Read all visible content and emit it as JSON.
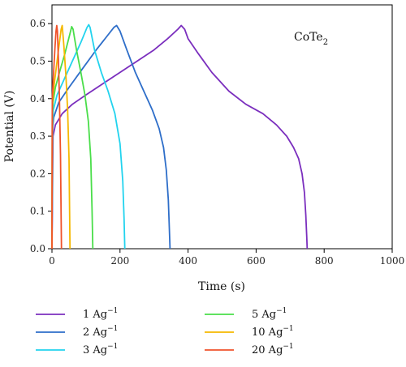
{
  "chart_data": {
    "type": "line",
    "title": "",
    "xlabel": "Time (s)",
    "ylabel": "Potential (V)",
    "xlim": [
      0,
      1000
    ],
    "ylim": [
      0,
      0.65
    ],
    "x_ticks": [
      0,
      200,
      400,
      600,
      800,
      1000
    ],
    "y_ticks": [
      0.0,
      0.1,
      0.2,
      0.3,
      0.4,
      0.5,
      0.6
    ],
    "grid": false,
    "annotation": {
      "base": "CoTe",
      "subscript": "2"
    },
    "legend_position": "below",
    "series": [
      {
        "name": "1 Ag",
        "superscript": "−1",
        "color": "#7b2fbe",
        "x": [
          0,
          3,
          10,
          30,
          60,
          100,
          150,
          200,
          250,
          300,
          340,
          370,
          380,
          390,
          400,
          430,
          470,
          520,
          570,
          620,
          660,
          690,
          710,
          725,
          735,
          742,
          746,
          749,
          750
        ],
        "y": [
          0.0,
          0.3,
          0.33,
          0.36,
          0.385,
          0.41,
          0.44,
          0.47,
          0.5,
          0.53,
          0.56,
          0.585,
          0.595,
          0.585,
          0.56,
          0.52,
          0.47,
          0.42,
          0.385,
          0.36,
          0.33,
          0.3,
          0.27,
          0.24,
          0.2,
          0.15,
          0.09,
          0.03,
          0.0
        ]
      },
      {
        "name": "2 Ag",
        "superscript": "−1",
        "color": "#2e6ec9",
        "x": [
          0,
          2,
          5,
          20,
          50,
          90,
          130,
          165,
          182,
          190,
          200,
          220,
          245,
          270,
          295,
          315,
          328,
          336,
          342,
          345,
          347
        ],
        "y": [
          0.0,
          0.32,
          0.35,
          0.39,
          0.43,
          0.48,
          0.53,
          0.57,
          0.59,
          0.595,
          0.58,
          0.53,
          0.47,
          0.42,
          0.37,
          0.32,
          0.27,
          0.21,
          0.13,
          0.05,
          0.0
        ]
      },
      {
        "name": "3 Ag",
        "superscript": "−1",
        "color": "#22d3ee",
        "x": [
          0,
          2,
          4,
          15,
          35,
          60,
          85,
          103,
          108,
          112,
          125,
          145,
          165,
          185,
          200,
          208,
          212,
          214
        ],
        "y": [
          0.0,
          0.34,
          0.37,
          0.41,
          0.45,
          0.5,
          0.55,
          0.59,
          0.597,
          0.59,
          0.53,
          0.47,
          0.42,
          0.36,
          0.28,
          0.18,
          0.08,
          0.0
        ]
      },
      {
        "name": "5 Ag",
        "superscript": "−1",
        "color": "#4ade4a",
        "x": [
          0,
          1,
          3,
          10,
          22,
          38,
          52,
          58,
          62,
          72,
          85,
          97,
          107,
          114,
          118,
          120
        ],
        "y": [
          0.0,
          0.36,
          0.39,
          0.43,
          0.47,
          0.52,
          0.57,
          0.592,
          0.585,
          0.53,
          0.47,
          0.41,
          0.34,
          0.24,
          0.1,
          0.0
        ]
      },
      {
        "name": "10 Ag",
        "superscript": "−1",
        "color": "#f5b800",
        "x": [
          0,
          1,
          3,
          8,
          15,
          22,
          27,
          30,
          35,
          41,
          46,
          50,
          52,
          53
        ],
        "y": [
          0.0,
          0.38,
          0.41,
          0.45,
          0.5,
          0.55,
          0.585,
          0.595,
          0.54,
          0.46,
          0.37,
          0.24,
          0.08,
          0.0
        ]
      },
      {
        "name": "20 Ag",
        "superscript": "−1",
        "color": "#f0522b",
        "x": [
          0,
          1,
          3,
          6,
          9,
          12,
          14,
          16,
          19,
          22,
          25,
          27,
          28
        ],
        "y": [
          0.0,
          0.4,
          0.44,
          0.49,
          0.54,
          0.58,
          0.595,
          0.58,
          0.5,
          0.4,
          0.25,
          0.08,
          0.0
        ]
      }
    ]
  }
}
